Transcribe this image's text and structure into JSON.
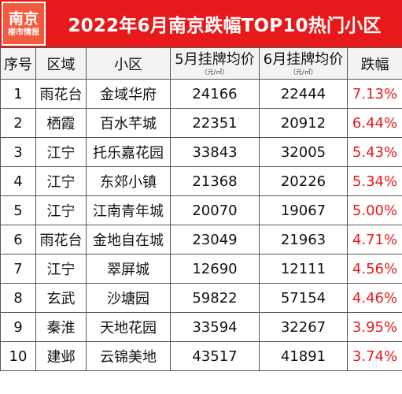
{
  "header": {
    "logo_line1": "南京",
    "logo_line2": "楼市情报",
    "title": "2022年6月南京跌幅TOP10热门小区"
  },
  "columns": {
    "rank": "序号",
    "district": "区域",
    "community": "小区",
    "may_price": "5月挂牌均价",
    "may_unit": "（元/㎡）",
    "jun_price": "6月挂牌均价",
    "jun_unit": "（元/㎡）",
    "drop": "跌幅"
  },
  "colors": {
    "accent": "#e8191b",
    "header_bg": "#f3f3f3"
  },
  "rows": [
    {
      "rank": "1",
      "district": "雨花台",
      "community": "金域华府",
      "may": "24166",
      "jun": "22444",
      "drop": "7.13%"
    },
    {
      "rank": "2",
      "district": "栖霞",
      "community": "百水芊城",
      "may": "22351",
      "jun": "20912",
      "drop": "6.44%"
    },
    {
      "rank": "3",
      "district": "江宁",
      "community": "托乐嘉花园",
      "may": "33843",
      "jun": "32005",
      "drop": "5.43%"
    },
    {
      "rank": "4",
      "district": "江宁",
      "community": "东郊小镇",
      "may": "21368",
      "jun": "20226",
      "drop": "5.34%"
    },
    {
      "rank": "5",
      "district": "江宁",
      "community": "江南青年城",
      "may": "20070",
      "jun": "19067",
      "drop": "5.00%"
    },
    {
      "rank": "6",
      "district": "雨花台",
      "community": "金地自在城",
      "may": "23049",
      "jun": "21963",
      "drop": "4.71%"
    },
    {
      "rank": "7",
      "district": "江宁",
      "community": "翠屏城",
      "may": "12690",
      "jun": "12111",
      "drop": "4.56%"
    },
    {
      "rank": "8",
      "district": "玄武",
      "community": "沙塘园",
      "may": "59822",
      "jun": "57154",
      "drop": "4.46%"
    },
    {
      "rank": "9",
      "district": "秦淮",
      "community": "天地花园",
      "may": "33594",
      "jun": "32267",
      "drop": "3.95%"
    },
    {
      "rank": "10",
      "district": "建邺",
      "community": "云锦美地",
      "may": "43517",
      "jun": "41891",
      "drop": "3.74%"
    }
  ]
}
